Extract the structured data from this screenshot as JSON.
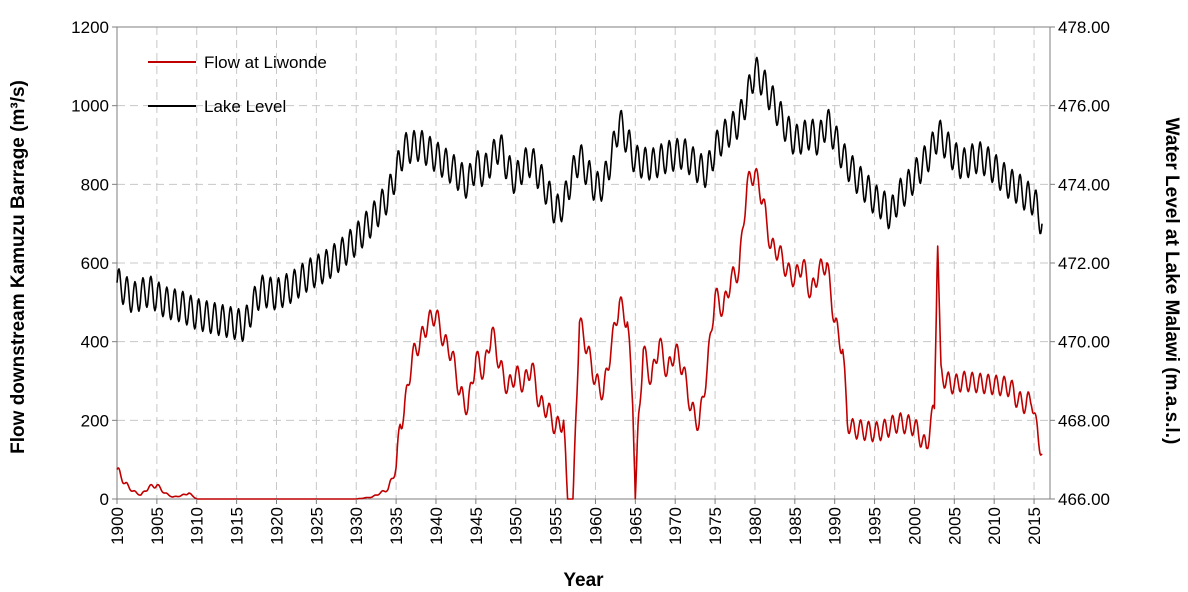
{
  "chart_data": {
    "type": "line",
    "x_axis": {
      "label": "Year",
      "range": [
        1900,
        2017
      ],
      "ticks": [
        "1900",
        "1905",
        "1910",
        "1915",
        "1920",
        "1925",
        "1930",
        "1935",
        "1940",
        "1945",
        "1950",
        "1955",
        "1960",
        "1965",
        "1970",
        "1975",
        "1980",
        "1985",
        "1990",
        "1995",
        "2000",
        "2005",
        "2010",
        "2015"
      ]
    },
    "y_left": {
      "label": "Flow downstream Kamuzu Barrage (m³/s)",
      "range": [
        0,
        1200
      ],
      "ticks": [
        "0",
        "200",
        "400",
        "600",
        "800",
        "1000",
        "1200"
      ]
    },
    "y_right": {
      "label": "Water Level at Lake Malawi (m.a.s.l.)",
      "range": [
        466,
        478
      ],
      "ticks": [
        "466.00",
        "468.00",
        "470.00",
        "472.00",
        "474.00",
        "476.00",
        "478.00"
      ]
    },
    "grid": "dashed",
    "legend_position": "top-left",
    "series": [
      {
        "name": "Flow at Liwonde",
        "axis": "left",
        "color": "#c00000",
        "seasonal_amplitude": 25,
        "points": [
          [
            1900,
            75
          ],
          [
            1901,
            40
          ],
          [
            1902,
            20
          ],
          [
            1903,
            10
          ],
          [
            1904,
            30
          ],
          [
            1905,
            35
          ],
          [
            1906,
            15
          ],
          [
            1907,
            5
          ],
          [
            1908,
            8
          ],
          [
            1909,
            15
          ],
          [
            1910,
            0
          ],
          [
            1920,
            0
          ],
          [
            1930,
            0
          ],
          [
            1932,
            5
          ],
          [
            1934,
            25
          ],
          [
            1935,
            80
          ],
          [
            1935.5,
            190
          ],
          [
            1936,
            220
          ],
          [
            1937,
            360
          ],
          [
            1938,
            400
          ],
          [
            1939,
            450
          ],
          [
            1940,
            470
          ],
          [
            1941,
            400
          ],
          [
            1942,
            370
          ],
          [
            1943,
            270
          ],
          [
            1944,
            230
          ],
          [
            1945,
            360
          ],
          [
            1946,
            320
          ],
          [
            1947,
            430
          ],
          [
            1948,
            340
          ],
          [
            1949,
            280
          ],
          [
            1950,
            320
          ],
          [
            1951,
            290
          ],
          [
            1952,
            340
          ],
          [
            1953,
            240
          ],
          [
            1954,
            230
          ],
          [
            1955,
            180
          ],
          [
            1956,
            200
          ],
          [
            1956.5,
            0
          ],
          [
            1957.2,
            0
          ],
          [
            1957.6,
            250
          ],
          [
            1958,
            450
          ],
          [
            1959,
            380
          ],
          [
            1960,
            300
          ],
          [
            1961,
            270
          ],
          [
            1962,
            390
          ],
          [
            1963,
            500
          ],
          [
            1964,
            450
          ],
          [
            1964.7,
            250
          ],
          [
            1965,
            0
          ],
          [
            1965.4,
            200
          ],
          [
            1966,
            380
          ],
          [
            1967,
            300
          ],
          [
            1968,
            400
          ],
          [
            1969,
            320
          ],
          [
            1970,
            380
          ],
          [
            1971,
            330
          ],
          [
            1972,
            230
          ],
          [
            1973,
            190
          ],
          [
            1974,
            330
          ],
          [
            1975,
            520
          ],
          [
            1976,
            480
          ],
          [
            1977,
            560
          ],
          [
            1978,
            580
          ],
          [
            1979,
            800
          ],
          [
            1980,
            830
          ],
          [
            1981,
            760
          ],
          [
            1982,
            640
          ],
          [
            1983,
            630
          ],
          [
            1984,
            580
          ],
          [
            1985,
            560
          ],
          [
            1986,
            600
          ],
          [
            1987,
            520
          ],
          [
            1988,
            580
          ],
          [
            1989,
            600
          ],
          [
            1990,
            450
          ],
          [
            1991,
            380
          ],
          [
            1991.6,
            200
          ],
          [
            1992,
            180
          ],
          [
            1995,
            170
          ],
          [
            1996,
            175
          ],
          [
            1998,
            195
          ],
          [
            2000,
            185
          ],
          [
            2001.5,
            130
          ],
          [
            2002,
            190
          ],
          [
            2002.5,
            230
          ],
          [
            2002.9,
            670
          ],
          [
            2003.3,
            320
          ],
          [
            2004,
            300
          ],
          [
            2005,
            290
          ],
          [
            2006,
            300
          ],
          [
            2008,
            295
          ],
          [
            2010,
            290
          ],
          [
            2012,
            285
          ],
          [
            2013,
            250
          ],
          [
            2014,
            240
          ],
          [
            2014.7,
            260
          ],
          [
            2015.2,
            190
          ],
          [
            2016,
            115
          ]
        ]
      },
      {
        "name": "Lake Level",
        "axis": "right",
        "color": "#000000",
        "seasonal_amplitude": 0.4,
        "points": [
          [
            1900,
            471.5
          ],
          [
            1902,
            471.1
          ],
          [
            1904,
            471.3
          ],
          [
            1906,
            471.0
          ],
          [
            1908,
            470.9
          ],
          [
            1910,
            470.7
          ],
          [
            1912,
            470.6
          ],
          [
            1914,
            470.5
          ],
          [
            1916,
            470.4
          ],
          [
            1917,
            470.9
          ],
          [
            1918,
            471.3
          ],
          [
            1920,
            471.2
          ],
          [
            1922,
            471.4
          ],
          [
            1924,
            471.7
          ],
          [
            1926,
            471.9
          ],
          [
            1928,
            472.2
          ],
          [
            1930,
            472.6
          ],
          [
            1932,
            473.1
          ],
          [
            1934,
            473.7
          ],
          [
            1935,
            474.3
          ],
          [
            1936,
            474.9
          ],
          [
            1938,
            475.0
          ],
          [
            1940,
            474.7
          ],
          [
            1942,
            474.4
          ],
          [
            1944,
            474.0
          ],
          [
            1945,
            474.5
          ],
          [
            1946,
            474.3
          ],
          [
            1948,
            475.0
          ],
          [
            1949,
            474.4
          ],
          [
            1950,
            474.1
          ],
          [
            1951,
            474.5
          ],
          [
            1952,
            474.6
          ],
          [
            1953,
            474.2
          ],
          [
            1954,
            473.8
          ],
          [
            1955,
            473.3
          ],
          [
            1956,
            473.5
          ],
          [
            1957,
            474.2
          ],
          [
            1958,
            474.7
          ],
          [
            1959,
            474.3
          ],
          [
            1960,
            473.9
          ],
          [
            1961,
            474.0
          ],
          [
            1962,
            474.7
          ],
          [
            1963,
            475.6
          ],
          [
            1964,
            475.1
          ],
          [
            1965,
            474.6
          ],
          [
            1967,
            474.5
          ],
          [
            1969,
            474.7
          ],
          [
            1971,
            474.8
          ],
          [
            1973,
            474.4
          ],
          [
            1974,
            474.3
          ],
          [
            1975,
            474.9
          ],
          [
            1976,
            475.2
          ],
          [
            1977,
            475.4
          ],
          [
            1978,
            475.6
          ],
          [
            1979,
            476.2
          ],
          [
            1980,
            476.9
          ],
          [
            1981,
            476.6
          ],
          [
            1982,
            476.2
          ],
          [
            1983,
            475.8
          ],
          [
            1984,
            475.4
          ],
          [
            1985,
            475.1
          ],
          [
            1986,
            475.2
          ],
          [
            1987,
            475.3
          ],
          [
            1988,
            475.1
          ],
          [
            1989,
            475.6
          ],
          [
            1990,
            475.2
          ],
          [
            1991,
            474.7
          ],
          [
            1992,
            474.4
          ],
          [
            1993,
            474.1
          ],
          [
            1994,
            473.9
          ],
          [
            1995,
            473.6
          ],
          [
            1996,
            473.5
          ],
          [
            1997,
            473.2
          ],
          [
            1998,
            473.7
          ],
          [
            1999,
            473.9
          ],
          [
            2000,
            474.2
          ],
          [
            2001,
            474.5
          ],
          [
            2002,
            474.8
          ],
          [
            2003,
            475.3
          ],
          [
            2004,
            475.0
          ],
          [
            2005,
            474.7
          ],
          [
            2006,
            474.5
          ],
          [
            2007,
            474.6
          ],
          [
            2008,
            474.7
          ],
          [
            2009,
            474.6
          ],
          [
            2010,
            474.4
          ],
          [
            2011,
            474.2
          ],
          [
            2012,
            474.0
          ],
          [
            2013,
            473.9
          ],
          [
            2014,
            473.7
          ],
          [
            2015,
            473.6
          ],
          [
            2016,
            473.0
          ]
        ]
      }
    ]
  }
}
